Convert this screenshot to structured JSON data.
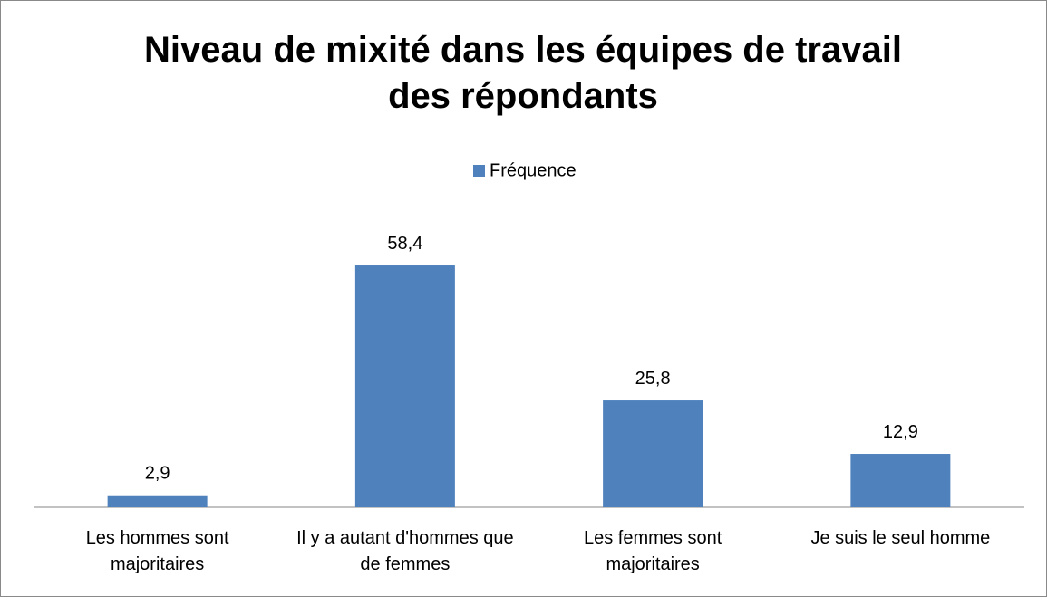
{
  "chart_data": {
    "type": "bar",
    "title": "Niveau de mixité dans les équipes de travail des répondants",
    "categories": [
      "Les hommes sont majoritaires",
      "Il y a autant d'hommes que de femmes",
      "Les femmes sont majoritaires",
      "Je suis le seul homme"
    ],
    "series": [
      {
        "name": "Fréquence",
        "color": "#4f81bd",
        "values": [
          2.9,
          58.4,
          25.8,
          12.9
        ],
        "value_labels": [
          "2,9",
          "58,4",
          "25,8",
          "12,9"
        ]
      }
    ],
    "ylim": [
      0,
      70
    ],
    "legend": "top"
  }
}
